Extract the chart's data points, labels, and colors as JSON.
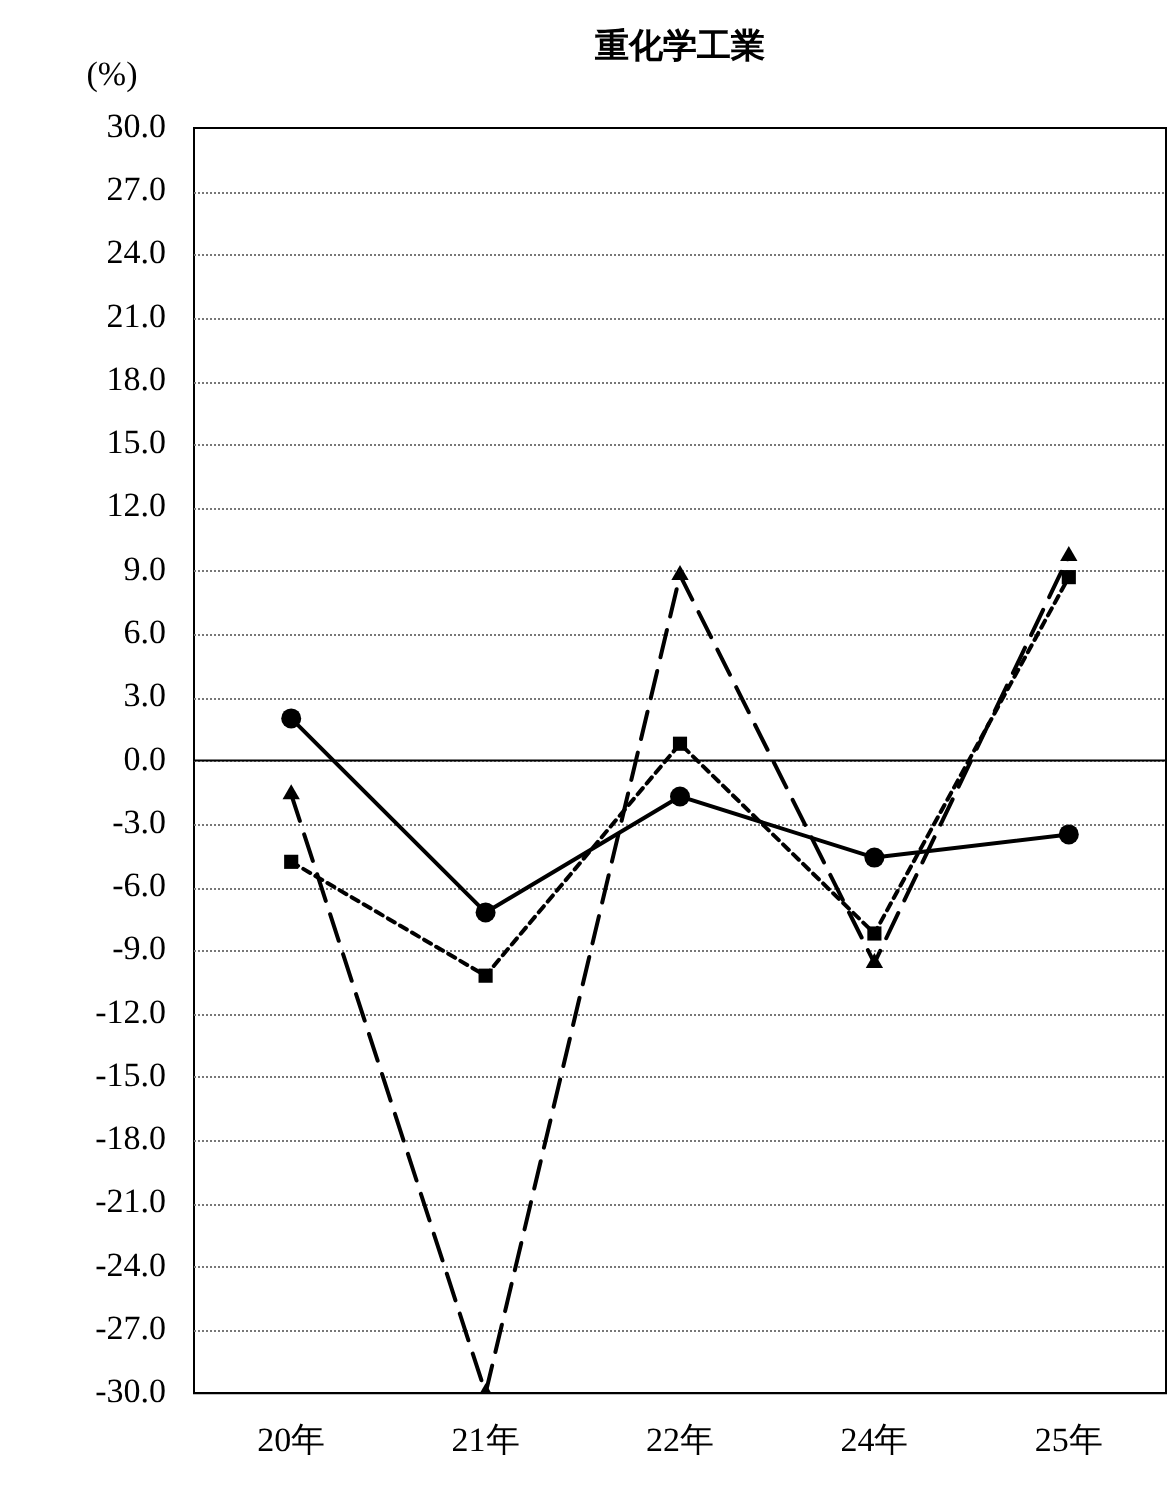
{
  "chart_data": {
    "type": "line",
    "title": "重化学工業",
    "ylabel": "(%)",
    "categories": [
      "20年",
      "21年",
      "22年",
      "24年",
      "25年"
    ],
    "series": [
      {
        "color": "#000000",
        "marker": "circle",
        "line_style": "solid",
        "values": [
          2.0,
          -7.2,
          -1.7,
          -4.6,
          -3.5
        ]
      },
      {
        "color": "#000000",
        "marker": "square",
        "line_style": "dotted",
        "values": [
          -4.8,
          -10.2,
          0.8,
          -8.2,
          8.7
        ]
      },
      {
        "color": "#000000",
        "marker": "triangle",
        "line_style": "dashed",
        "values": [
          -1.6,
          -30.0,
          8.8,
          -9.6,
          9.7
        ]
      }
    ],
    "ylim": [
      -30,
      30
    ],
    "yticks": [
      {
        "value": 30,
        "label": "30.0"
      },
      {
        "value": 27,
        "label": "27.0"
      },
      {
        "value": 24,
        "label": "24.0"
      },
      {
        "value": 21,
        "label": "21.0"
      },
      {
        "value": 18,
        "label": "18.0"
      },
      {
        "value": 15,
        "label": "15.0"
      },
      {
        "value": 12,
        "label": "12.0"
      },
      {
        "value": 9,
        "label": "9.0"
      },
      {
        "value": 6,
        "label": "6.0"
      },
      {
        "value": 3,
        "label": "3.0"
      },
      {
        "value": 0,
        "label": "0.0"
      },
      {
        "value": -3,
        "label": "-3.0"
      },
      {
        "value": -6,
        "label": "-6.0"
      },
      {
        "value": -9,
        "label": "-9.0"
      },
      {
        "value": -12,
        "label": "-12.0"
      },
      {
        "value": -15,
        "label": "-15.0"
      },
      {
        "value": -18,
        "label": "-18.0"
      },
      {
        "value": -21,
        "label": "-21.0"
      },
      {
        "value": -24,
        "label": "-24.0"
      },
      {
        "value": -27,
        "label": "-27.0"
      },
      {
        "value": -30,
        "label": "-30.0"
      }
    ],
    "grid": "y",
    "legend": false
  }
}
